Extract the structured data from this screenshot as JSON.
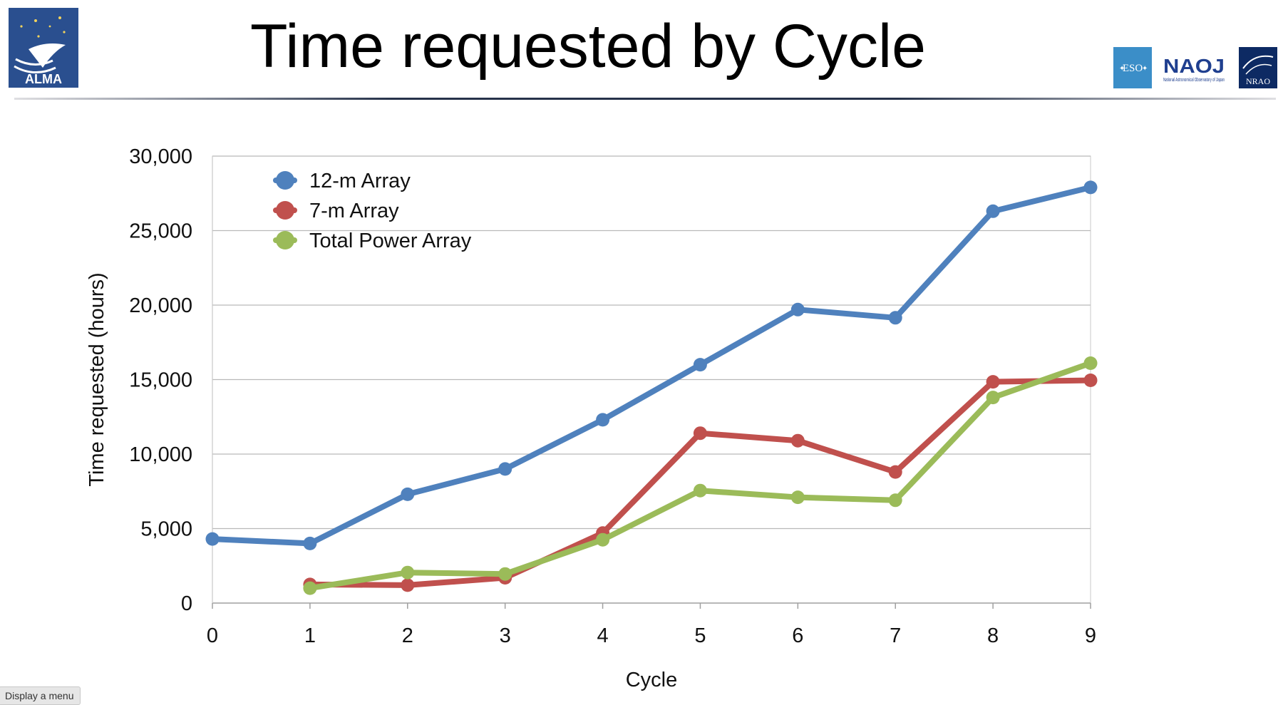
{
  "header": {
    "title": "Time requested by Cycle",
    "alma_logo_text": "ALMA",
    "eso_logo_text": "ESO",
    "naoj_logo_text": "NAOJ",
    "naoj_logo_subtext": "National Astronomical Observatory of Japan",
    "nrao_logo_text": "NRAO"
  },
  "display_menu_label": "Display a menu",
  "chart_data": {
    "type": "line",
    "title": "",
    "xlabel": "Cycle",
    "ylabel": "Time requested (hours)",
    "x": [
      0,
      1,
      2,
      3,
      4,
      5,
      6,
      7,
      8,
      9
    ],
    "xticks": [
      "0",
      "1",
      "2",
      "3",
      "4",
      "5",
      "6",
      "7",
      "8",
      "9"
    ],
    "yticks": [
      "0",
      "5,000",
      "10,000",
      "15,000",
      "20,000",
      "25,000",
      "30,000"
    ],
    "ytick_values": [
      0,
      5000,
      10000,
      15000,
      20000,
      25000,
      30000
    ],
    "xlim": [
      0,
      9
    ],
    "ylim": [
      0,
      30000
    ],
    "grid": "horizontal",
    "legend_position": "top-left",
    "series": [
      {
        "name": "12-m Array",
        "color": "#4f81bd",
        "points": [
          [
            0,
            4300
          ],
          [
            1,
            4000
          ],
          [
            2,
            7300
          ],
          [
            3,
            9000
          ],
          [
            4,
            12300
          ],
          [
            5,
            16000
          ],
          [
            6,
            19700
          ],
          [
            7,
            19150
          ],
          [
            8,
            26300
          ],
          [
            9,
            27900
          ]
        ]
      },
      {
        "name": "7-m Array",
        "color": "#c0504d",
        "points": [
          [
            1,
            1250
          ],
          [
            2,
            1200
          ],
          [
            3,
            1700
          ],
          [
            4,
            4700
          ],
          [
            5,
            11400
          ],
          [
            6,
            10900
          ],
          [
            7,
            8800
          ],
          [
            8,
            14850
          ],
          [
            9,
            14950
          ]
        ]
      },
      {
        "name": "Total Power Array",
        "color": "#9bbb59",
        "points": [
          [
            1,
            1000
          ],
          [
            2,
            2050
          ],
          [
            3,
            1950
          ],
          [
            4,
            4250
          ],
          [
            5,
            7550
          ],
          [
            6,
            7100
          ],
          [
            7,
            6900
          ],
          [
            8,
            13800
          ],
          [
            9,
            16100
          ]
        ]
      }
    ]
  }
}
